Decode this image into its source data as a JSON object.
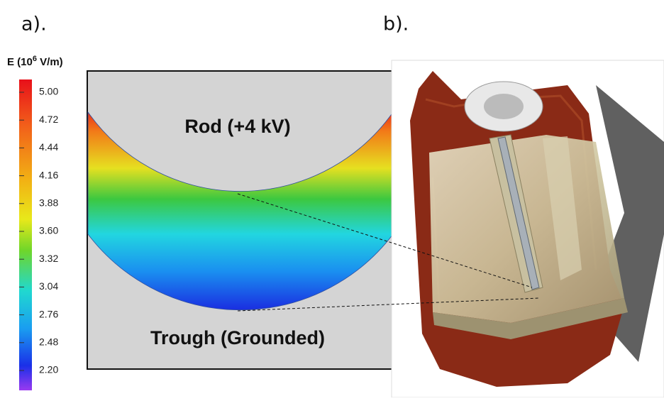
{
  "panels": [
    {
      "label": "a)."
    },
    {
      "label": "b)."
    }
  ],
  "colorbar": {
    "title": {
      "prefix": "E (10",
      "exponent": "6",
      "suffix": " V/m)"
    },
    "ticks": [
      "5.00",
      "4.72",
      "4.44",
      "4.16",
      "3.88",
      "3.60",
      "3.32",
      "3.04",
      "2.76",
      "2.48",
      "2.20"
    ]
  },
  "annotations": {
    "rod": "Rod (+4 kV)",
    "trough": "Trough (Grounded)"
  }
}
